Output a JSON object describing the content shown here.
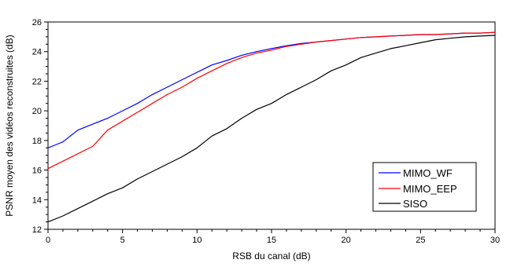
{
  "chart_data": {
    "type": "line",
    "title": "",
    "xlabel": "RSB du canal (dB)",
    "ylabel": "PSNR moyen des vidéos reconstruites (dB)",
    "xlim": [
      0,
      30
    ],
    "ylim": [
      12,
      26
    ],
    "xticks": [
      0,
      5,
      10,
      15,
      20,
      25,
      30
    ],
    "yticks": [
      12,
      14,
      16,
      18,
      20,
      22,
      24,
      26
    ],
    "grid": false,
    "legend_position": "bottom-right",
    "series": [
      {
        "name": "MIMO_WF",
        "color": "#0000ff",
        "x": [
          0,
          0.5,
          1,
          1.5,
          2,
          3,
          4,
          5,
          6,
          7,
          8,
          9,
          10,
          11,
          12,
          13,
          14,
          15,
          16,
          17,
          18,
          19,
          20,
          21,
          22,
          23,
          24,
          25,
          26,
          27,
          28,
          29,
          30
        ],
        "y": [
          17.5,
          17.7,
          17.9,
          18.3,
          18.7,
          19.1,
          19.5,
          20.0,
          20.5,
          21.1,
          21.6,
          22.1,
          22.6,
          23.1,
          23.4,
          23.75,
          24.0,
          24.2,
          24.4,
          24.55,
          24.65,
          24.75,
          24.85,
          24.95,
          25.0,
          25.05,
          25.1,
          25.15,
          25.15,
          25.2,
          25.25,
          25.25,
          25.3
        ]
      },
      {
        "name": "MIMO_EEP",
        "color": "#ff0000",
        "x": [
          0,
          1,
          2,
          3,
          4,
          5,
          6,
          7,
          8,
          9,
          10,
          11,
          12,
          13,
          14,
          15,
          16,
          17,
          18,
          19,
          20,
          21,
          22,
          23,
          24,
          25,
          26,
          27,
          28,
          29,
          30
        ],
        "y": [
          16.1,
          16.6,
          17.1,
          17.6,
          18.7,
          19.3,
          19.9,
          20.5,
          21.1,
          21.6,
          22.2,
          22.7,
          23.2,
          23.6,
          23.9,
          24.1,
          24.35,
          24.5,
          24.65,
          24.75,
          24.85,
          24.95,
          25.0,
          25.05,
          25.1,
          25.15,
          25.15,
          25.2,
          25.25,
          25.25,
          25.3
        ]
      },
      {
        "name": "SISO",
        "color": "#000000",
        "x": [
          0,
          1,
          2,
          3,
          4,
          5,
          6,
          7,
          8,
          9,
          10,
          11,
          12,
          13,
          14,
          15,
          16,
          17,
          18,
          19,
          20,
          21,
          22,
          23,
          24,
          25,
          26,
          27,
          28,
          29,
          30
        ],
        "y": [
          12.5,
          12.9,
          13.4,
          13.9,
          14.4,
          14.8,
          15.4,
          15.9,
          16.4,
          16.9,
          17.5,
          18.3,
          18.8,
          19.5,
          20.1,
          20.5,
          21.1,
          21.6,
          22.1,
          22.7,
          23.1,
          23.6,
          23.9,
          24.2,
          24.4,
          24.6,
          24.8,
          24.9,
          25.0,
          25.05,
          25.1
        ]
      }
    ]
  }
}
